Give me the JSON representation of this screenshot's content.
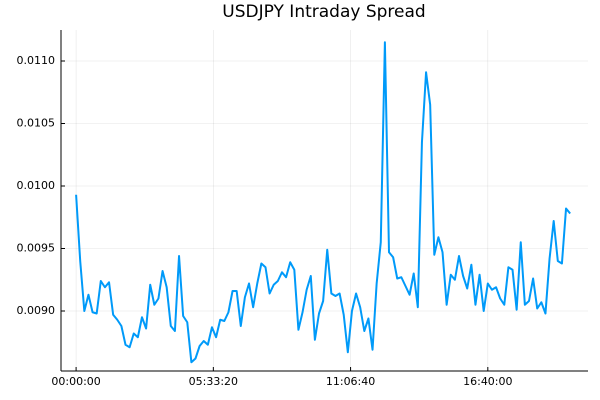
{
  "chart_data": {
    "type": "line",
    "title": "USDJPY Intraday Spread",
    "x": [
      0,
      600,
      1200,
      1800,
      2400,
      3000,
      3600,
      4200,
      4800,
      5400,
      6000,
      6600,
      7200,
      7800,
      8400,
      9000,
      9600,
      10200,
      10800,
      11400,
      12000,
      12600,
      13200,
      13800,
      14400,
      15000,
      15600,
      16200,
      16800,
      17400,
      18000,
      18600,
      19200,
      19800,
      20400,
      21000,
      21600,
      22200,
      22800,
      23400,
      24000,
      24600,
      25200,
      25800,
      26400,
      27000,
      27600,
      28200,
      28800,
      29400,
      30000,
      30600,
      31200,
      31800,
      32400,
      33000,
      33600,
      34200,
      34800,
      35400,
      36000,
      36600,
      37200,
      37800,
      38400,
      39000,
      39600,
      40200,
      40800,
      41400,
      42000,
      42600,
      43200,
      43800,
      44400,
      45000,
      45600,
      46200,
      46800,
      47400,
      48000,
      48600,
      49200,
      49800,
      50400,
      51000,
      51600,
      52200,
      52800,
      53400,
      54000,
      54600,
      55200,
      55800,
      56400,
      57000,
      57600,
      58200,
      58800,
      59400,
      60000,
      60600,
      61200,
      61800,
      62400,
      63000,
      63600,
      64200,
      64800,
      65400,
      66000,
      66600,
      67200,
      67800,
      68400,
      69000,
      69600,
      70200,
      70800,
      71400,
      72000
    ],
    "series": [
      {
        "color": "#009af9",
        "values": [
          0.00993,
          0.0094,
          0.009,
          0.00913,
          0.00899,
          0.00898,
          0.00924,
          0.00919,
          0.00923,
          0.00897,
          0.00893,
          0.00888,
          0.00873,
          0.00871,
          0.00882,
          0.00879,
          0.00895,
          0.00886,
          0.00921,
          0.00905,
          0.0091,
          0.00932,
          0.00919,
          0.00888,
          0.00884,
          0.00944,
          0.00896,
          0.00891,
          0.00859,
          0.00862,
          0.00872,
          0.00876,
          0.00873,
          0.00887,
          0.00879,
          0.00893,
          0.00892,
          0.00899,
          0.00916,
          0.00916,
          0.00888,
          0.00911,
          0.00922,
          0.00903,
          0.00922,
          0.00938,
          0.00935,
          0.00914,
          0.00921,
          0.00924,
          0.00931,
          0.00927,
          0.00939,
          0.00933,
          0.00885,
          0.00899,
          0.00917,
          0.00928,
          0.00877,
          0.00898,
          0.00908,
          0.00949,
          0.00914,
          0.00912,
          0.00914,
          0.00897,
          0.00867,
          0.009,
          0.00914,
          0.00903,
          0.00884,
          0.00894,
          0.00869,
          0.00922,
          0.00955,
          0.01115,
          0.00947,
          0.00943,
          0.00926,
          0.00927,
          0.0092,
          0.00913,
          0.0093,
          0.00903,
          0.01035,
          0.01091,
          0.01065,
          0.00945,
          0.00959,
          0.00947,
          0.00905,
          0.00929,
          0.00925,
          0.00944,
          0.00928,
          0.00918,
          0.00937,
          0.00905,
          0.00929,
          0.009,
          0.00922,
          0.00917,
          0.00919,
          0.0091,
          0.00905,
          0.00935,
          0.00933,
          0.00901,
          0.00955,
          0.00905,
          0.00908,
          0.00926,
          0.00902,
          0.00907,
          0.00898,
          0.00942,
          0.00972,
          0.0094,
          0.00938,
          0.00982,
          0.00978
        ]
      }
    ],
    "xlim": [
      -2200,
      74600
    ],
    "xticks": [
      {
        "value": 0,
        "label": "00:00:00"
      },
      {
        "value": 20000,
        "label": "05:33:20"
      },
      {
        "value": 40000,
        "label": "11:06:40"
      },
      {
        "value": 60000,
        "label": "16:40:00"
      }
    ],
    "ylim": [
      0.00852,
      0.011248
    ],
    "yticks": [
      {
        "value": 0.009,
        "label": "0.0090"
      },
      {
        "value": 0.0095,
        "label": "0.0095"
      },
      {
        "value": 0.01,
        "label": "0.0100"
      },
      {
        "value": 0.0105,
        "label": "0.0105"
      },
      {
        "value": 0.011,
        "label": "0.0110"
      }
    ],
    "grid": true
  }
}
